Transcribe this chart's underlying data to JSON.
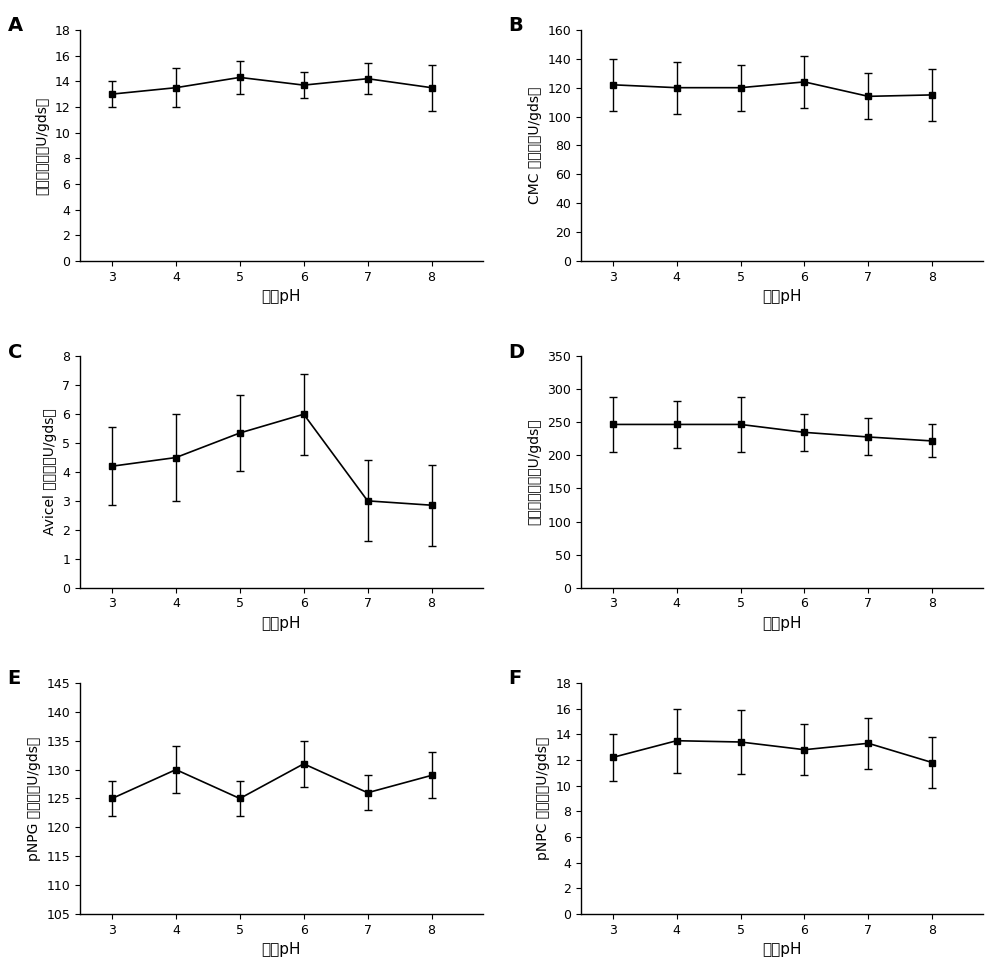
{
  "panels": [
    {
      "label": "A",
      "ylabel": "滤纸酶活力（U/gds）",
      "xlabel": "初始pH",
      "x": [
        3,
        4,
        5,
        6,
        7,
        8
      ],
      "y": [
        13.0,
        13.5,
        14.3,
        13.7,
        14.2,
        13.5
      ],
      "yerr": [
        1.0,
        1.5,
        1.3,
        1.0,
        1.2,
        1.8
      ],
      "ylim": [
        0,
        18
      ],
      "yticks": [
        0,
        2,
        4,
        6,
        8,
        10,
        12,
        14,
        16,
        18
      ]
    },
    {
      "label": "B",
      "ylabel": "CMC 酶活力（U/gds）",
      "xlabel": "初始pH",
      "x": [
        3,
        4,
        5,
        6,
        7,
        8
      ],
      "y": [
        122,
        120,
        120,
        124,
        114,
        115
      ],
      "yerr": [
        18,
        18,
        16,
        18,
        16,
        18
      ],
      "ylim": [
        0,
        160
      ],
      "yticks": [
        0,
        20,
        40,
        60,
        80,
        100,
        120,
        140,
        160
      ]
    },
    {
      "label": "C",
      "ylabel": "Avicel 酶活力（U/gds）",
      "xlabel": "初始pH",
      "x": [
        3,
        4,
        5,
        6,
        7,
        8
      ],
      "y": [
        4.2,
        4.5,
        5.35,
        6.0,
        3.0,
        2.85
      ],
      "yerr": [
        1.35,
        1.5,
        1.3,
        1.4,
        1.4,
        1.4
      ],
      "ylim": [
        0,
        8
      ],
      "yticks": [
        0,
        1,
        2,
        3,
        4,
        5,
        6,
        7,
        8
      ]
    },
    {
      "label": "D",
      "ylabel": "木聚糖酶活力（U/gds）",
      "xlabel": "初始pH",
      "x": [
        3,
        4,
        5,
        6,
        7,
        8
      ],
      "y": [
        247,
        247,
        247,
        235,
        228,
        222
      ],
      "yerr": [
        42,
        35,
        42,
        28,
        28,
        25
      ],
      "ylim": [
        0,
        350
      ],
      "yticks": [
        0,
        50,
        100,
        150,
        200,
        250,
        300,
        350
      ]
    },
    {
      "label": "E",
      "ylabel": "pNPG 酶活力（U/gds）",
      "xlabel": "初始pH",
      "x": [
        3,
        4,
        5,
        6,
        7,
        8
      ],
      "y": [
        125,
        130,
        125,
        131,
        126,
        129
      ],
      "yerr": [
        3,
        4,
        3,
        4,
        3,
        4
      ],
      "ylim": [
        105,
        145
      ],
      "yticks": [
        105,
        110,
        115,
        120,
        125,
        130,
        135,
        140,
        145
      ]
    },
    {
      "label": "F",
      "ylabel": "pNPC 酶活力（U/gds）",
      "xlabel": "初始pH",
      "x": [
        3,
        4,
        5,
        6,
        7,
        8
      ],
      "y": [
        12.2,
        13.5,
        13.4,
        12.8,
        13.3,
        11.8
      ],
      "yerr": [
        1.8,
        2.5,
        2.5,
        2.0,
        2.0,
        2.0
      ],
      "ylim": [
        0,
        18
      ],
      "yticks": [
        0,
        2,
        4,
        6,
        8,
        10,
        12,
        14,
        16,
        18
      ]
    }
  ]
}
